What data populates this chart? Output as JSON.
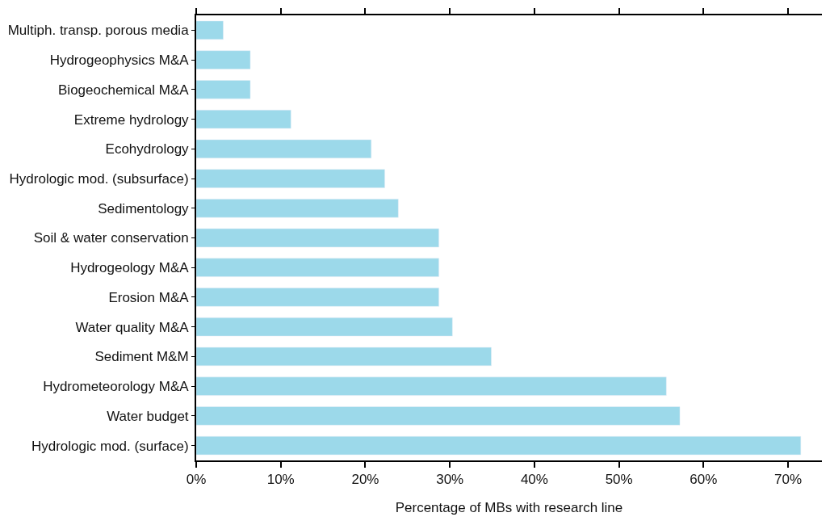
{
  "chart_data": {
    "type": "bar",
    "orientation": "horizontal",
    "xlabel": "Percentage of MBs with research line",
    "categories": [
      "Multiph. transp. porous media",
      "Hydrogeophysics M&A",
      "Biogeochemical M&A",
      "Extreme hydrology",
      "Ecohydrology",
      "Hydrologic mod. (subsurface)",
      "Sedimentology",
      "Soil & water conservation",
      "Hydrogeology M&A",
      "Erosion M&A",
      "Water quality M&A",
      "Sediment M&M",
      "Hydrometeorology M&A",
      "Water budget",
      "Hydrologic mod. (surface)"
    ],
    "values": [
      3.2,
      6.4,
      6.4,
      11.2,
      20.7,
      22.3,
      23.9,
      28.7,
      28.7,
      28.7,
      30.3,
      34.9,
      55.6,
      57.2,
      71.5
    ],
    "color": "#9cd9ea",
    "xlim": [
      0,
      74
    ],
    "xticks": [
      {
        "value": 0,
        "label": "0%"
      },
      {
        "value": 10,
        "label": "10%"
      },
      {
        "value": 20,
        "label": "20%"
      },
      {
        "value": 30,
        "label": "30%"
      },
      {
        "value": 40,
        "label": "40%"
      },
      {
        "value": 50,
        "label": "50%"
      },
      {
        "value": 60,
        "label": "60%"
      },
      {
        "value": 70,
        "label": "70%"
      }
    ]
  }
}
